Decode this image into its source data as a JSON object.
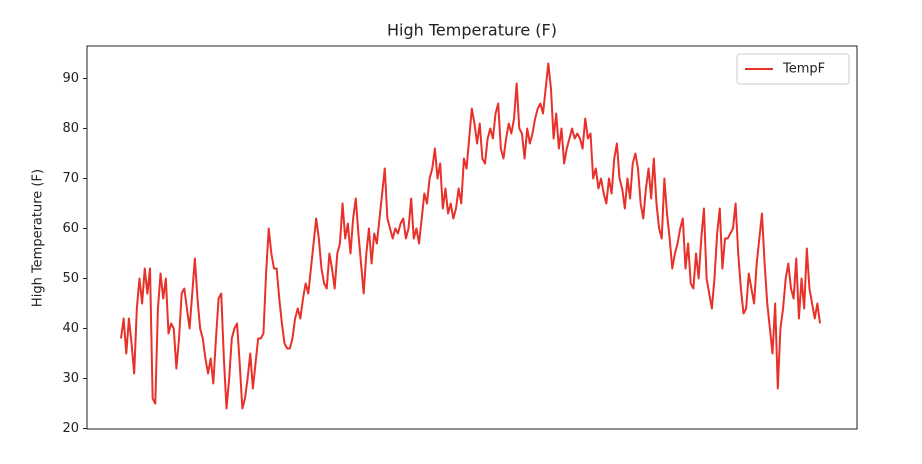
{
  "chart_data": {
    "type": "line",
    "title": "High Temperature (F)",
    "y_label": "High Temperature (F)",
    "series": [
      {
        "name": "TempF",
        "color": "#e8312a",
        "values": [
          38,
          42,
          35,
          42,
          37,
          31,
          44,
          50,
          45,
          52,
          47,
          52,
          26,
          25,
          44,
          51,
          46,
          50,
          39,
          41,
          40,
          32,
          38,
          47,
          48,
          44,
          40,
          47,
          54,
          46,
          40,
          38,
          34,
          31,
          34,
          29,
          38,
          46,
          47,
          34,
          24,
          30,
          38,
          40,
          41,
          33,
          24,
          26,
          30,
          35,
          28,
          33,
          38,
          38,
          39,
          51,
          60,
          55,
          52,
          52,
          46,
          41,
          37,
          36,
          36,
          38,
          42,
          44,
          42,
          46,
          49,
          47,
          52,
          57,
          62,
          58,
          52,
          49,
          48,
          55,
          52,
          48,
          55,
          57,
          65,
          58,
          61,
          55,
          62,
          66,
          59,
          53,
          47,
          55,
          60,
          53,
          59,
          57,
          62,
          67,
          72,
          62,
          60,
          58,
          60,
          59,
          61,
          62,
          58,
          60,
          66,
          58,
          60,
          57,
          62,
          67,
          65,
          70,
          72,
          76,
          70,
          73,
          64,
          68,
          63,
          65,
          62,
          64,
          68,
          65,
          74,
          72,
          78,
          84,
          81,
          77,
          81,
          74,
          73,
          78,
          80,
          78,
          83,
          85,
          76,
          74,
          78,
          81,
          79,
          82,
          89,
          80,
          79,
          74,
          80,
          77,
          79,
          82,
          84,
          85,
          83,
          88,
          93,
          88,
          78,
          83,
          76,
          80,
          73,
          76,
          78,
          80,
          78,
          79,
          78,
          76,
          82,
          78,
          79,
          70,
          72,
          68,
          70,
          67,
          65,
          70,
          67,
          74,
          77,
          70,
          68,
          64,
          70,
          66,
          73,
          75,
          72,
          65,
          62,
          68,
          72,
          66,
          74,
          65,
          60,
          58,
          70,
          63,
          58,
          52,
          55,
          57,
          60,
          62,
          52,
          57,
          49,
          48,
          55,
          50,
          58,
          64,
          50,
          47,
          44,
          50,
          59,
          64,
          52,
          58,
          58,
          59,
          60,
          65,
          55,
          48,
          43,
          44,
          51,
          48,
          45,
          53,
          58,
          63,
          53,
          45,
          40,
          35,
          45,
          28,
          40,
          44,
          50,
          53,
          48,
          46,
          54,
          42,
          50,
          44,
          56,
          48,
          45,
          42,
          45,
          41
        ]
      }
    ],
    "ylim": [
      19.9,
      96.5
    ],
    "yticks": [
      20,
      30,
      40,
      50,
      60,
      70,
      80,
      90
    ],
    "grid": false,
    "legend": "upper right"
  }
}
